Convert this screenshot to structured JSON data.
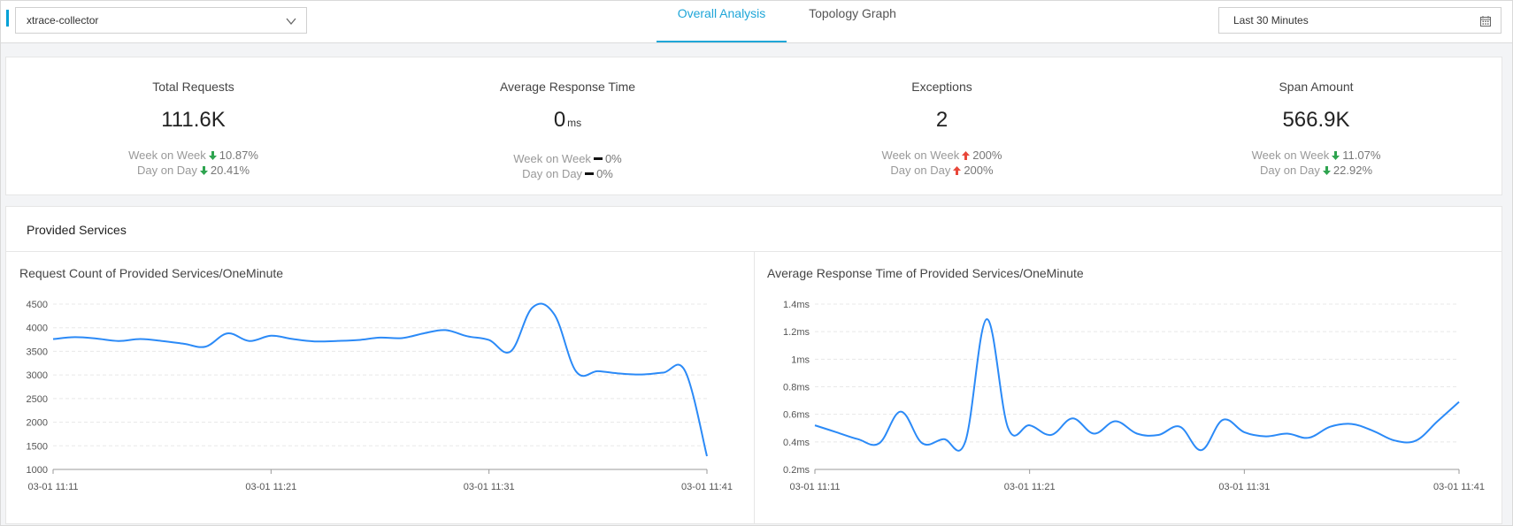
{
  "header": {
    "app_selector": {
      "value": "xtrace-collector"
    },
    "tabs": [
      {
        "label": "Overall Analysis",
        "active": true
      },
      {
        "label": "Topology Graph",
        "active": false
      }
    ],
    "time_selector": {
      "value": "Last 30 Minutes"
    }
  },
  "stats": [
    {
      "title": "Total Requests",
      "value": "111.6K",
      "unit": "",
      "week_label": "Week on Week",
      "week_dir": "down",
      "week_value": "10.87%",
      "day_label": "Day on Day",
      "day_dir": "down",
      "day_value": "20.41%"
    },
    {
      "title": "Average Response Time",
      "value": "0",
      "unit": "ms",
      "week_label": "Week on Week",
      "week_dir": "flat",
      "week_value": "0%",
      "day_label": "Day on Day",
      "day_dir": "flat",
      "day_value": "0%"
    },
    {
      "title": "Exceptions",
      "value": "2",
      "unit": "",
      "week_label": "Week on Week",
      "week_dir": "up",
      "week_value": "200%",
      "day_label": "Day on Day",
      "day_dir": "up",
      "day_value": "200%"
    },
    {
      "title": "Span Amount",
      "value": "566.9K",
      "unit": "",
      "week_label": "Week on Week",
      "week_dir": "down",
      "week_value": "11.07%",
      "day_label": "Day on Day",
      "day_dir": "down",
      "day_value": "22.92%"
    }
  ],
  "colors": {
    "accent": "#1fa6d8",
    "line": "#2b8af7",
    "down": "#2ea44f",
    "up": "#e8473a"
  },
  "services": {
    "title": "Provided Services"
  },
  "chart_data": [
    {
      "type": "line",
      "title": "Request Count of Provided Services/OneMinute",
      "xlabel": "",
      "ylabel": "",
      "ylim": [
        1000,
        4500
      ],
      "yticks": [
        "4500",
        "4000",
        "3500",
        "3000",
        "2500",
        "2000",
        "1500",
        "1000"
      ],
      "ytick_values": [
        4500,
        4000,
        3500,
        3000,
        2500,
        2000,
        1500,
        1000
      ],
      "xticks": [
        "03-01 11:11",
        "03-01 11:21",
        "03-01 11:31",
        "03-01 11:41"
      ],
      "xlim": [
        0,
        30
      ],
      "series": [
        {
          "name": "Request Count",
          "x": [
            0,
            1,
            2,
            3,
            4,
            5,
            6,
            7,
            8,
            9,
            10,
            11,
            12,
            13,
            14,
            15,
            16,
            17,
            18,
            19,
            20,
            21,
            22,
            23,
            24,
            25,
            26,
            27,
            28,
            29,
            30
          ],
          "values": [
            3760,
            3800,
            3770,
            3720,
            3760,
            3720,
            3660,
            3600,
            3880,
            3720,
            3830,
            3760,
            3710,
            3720,
            3740,
            3790,
            3780,
            3880,
            3950,
            3820,
            3740,
            3500,
            4430,
            4280,
            3070,
            3080,
            3030,
            3010,
            3050,
            3080,
            1280
          ]
        }
      ]
    },
    {
      "type": "line",
      "title": "Average Response Time of Provided Services/OneMinute",
      "xlabel": "",
      "ylabel": "",
      "ylim": [
        0.2,
        1.4
      ],
      "yticks": [
        "1.4ms",
        "1.2ms",
        "1ms",
        "0.8ms",
        "0.6ms",
        "0.4ms",
        "0.2ms"
      ],
      "ytick_values": [
        1.4,
        1.2,
        1.0,
        0.8,
        0.6,
        0.4,
        0.2
      ],
      "xticks": [
        "03-01 11:11",
        "03-01 11:21",
        "03-01 11:31",
        "03-01 11:41"
      ],
      "xlim": [
        0,
        30
      ],
      "series": [
        {
          "name": "Average Response Time",
          "x": [
            0,
            1,
            2,
            3,
            4,
            5,
            6,
            7,
            8,
            9,
            10,
            11,
            12,
            13,
            14,
            15,
            16,
            17,
            18,
            19,
            20,
            21,
            22,
            23,
            24,
            25,
            26,
            27,
            28,
            29,
            30
          ],
          "values": [
            0.52,
            0.47,
            0.42,
            0.39,
            0.62,
            0.39,
            0.42,
            0.4,
            1.29,
            0.5,
            0.52,
            0.45,
            0.57,
            0.46,
            0.55,
            0.46,
            0.45,
            0.51,
            0.34,
            0.56,
            0.47,
            0.44,
            0.46,
            0.43,
            0.51,
            0.53,
            0.48,
            0.41,
            0.41,
            0.55,
            0.69
          ]
        }
      ]
    }
  ]
}
